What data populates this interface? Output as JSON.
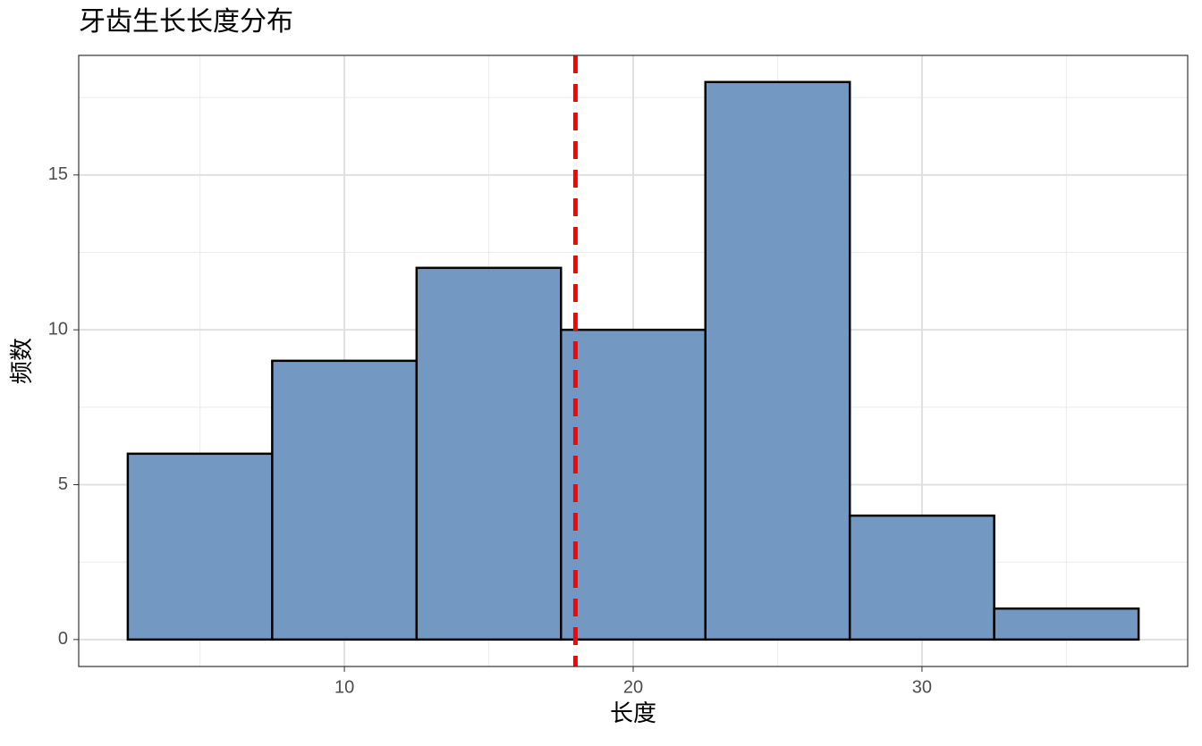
{
  "chart_data": {
    "type": "histogram",
    "title": "牙齿生长长度分布",
    "x_label": "长度",
    "y_label": "频数",
    "bins": [
      2.5,
      7.5,
      12.5,
      17.5,
      22.5,
      27.5,
      32.5,
      37.5
    ],
    "values": [
      6,
      9,
      12,
      10,
      18,
      4,
      1
    ],
    "color": "#7399c2",
    "edge_color": "#000000",
    "xlim": [
      0.8,
      39.2
    ],
    "ylim": [
      -0.87,
      18.86
    ],
    "xticks": [
      10,
      20,
      30
    ],
    "yticks": [
      0,
      5,
      10,
      15
    ],
    "x_minor_grid": [
      5,
      15,
      25,
      35
    ],
    "y_minor_grid": [
      2.5,
      7.5,
      12.5,
      17.5
    ],
    "grid": true,
    "vline": 18,
    "vline_color": "#ff0000"
  }
}
